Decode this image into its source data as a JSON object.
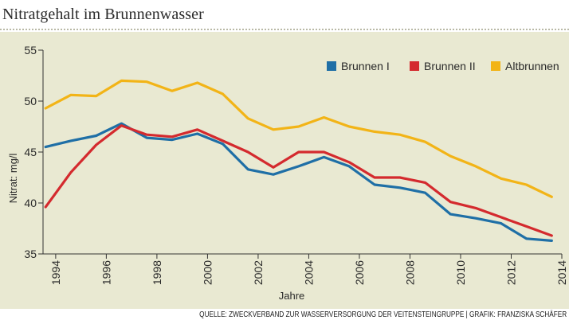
{
  "header": {
    "title": "Nitratgehalt im Brunnenwasser"
  },
  "footer": {
    "source": "QUELLE: ZWECKVERBAND ZUR WASSERVERSORGUNG DER VEITENSTEINGRUPPE | GRAFIK: FRANZISKA SCHÄFER"
  },
  "chart_data": {
    "type": "line",
    "title": "Nitratgehalt im Brunnenwasser",
    "xlabel": "Jahre",
    "ylabel": "Nitrat: mg/l",
    "xlim": [
      1993.5,
      2014
    ],
    "ylim": [
      35,
      55
    ],
    "xticks": [
      1994,
      1996,
      1998,
      2000,
      2002,
      2004,
      2006,
      2008,
      2010,
      2012,
      2014
    ],
    "yticks": [
      35,
      40,
      45,
      50,
      55
    ],
    "legend_position": "top-right",
    "x": [
      1993.6,
      1994.6,
      1995.6,
      1996.6,
      1997.6,
      1998.6,
      1999.6,
      2000.6,
      2001.6,
      2002.6,
      2003.6,
      2004.6,
      2005.6,
      2006.6,
      2007.6,
      2008.6,
      2009.6,
      2010.6,
      2011.6,
      2012.6,
      2013.6
    ],
    "series": [
      {
        "name": "Brunnen I",
        "color": "#1f6fa6",
        "values": [
          45.5,
          46.1,
          46.6,
          47.8,
          46.4,
          46.2,
          46.8,
          45.8,
          43.3,
          42.8,
          43.6,
          44.5,
          43.6,
          41.8,
          41.5,
          41.0,
          38.9,
          38.5,
          38.0,
          36.5,
          36.3
        ]
      },
      {
        "name": "Brunnen II",
        "color": "#d42a2e",
        "values": [
          39.6,
          43.0,
          45.7,
          47.6,
          46.7,
          46.5,
          47.2,
          46.1,
          45.0,
          43.5,
          45.0,
          45.0,
          44.0,
          42.5,
          42.5,
          42.0,
          40.1,
          39.5,
          38.6,
          37.7,
          36.8
        ]
      },
      {
        "name": "Altbrunnen",
        "color": "#f2b417",
        "values": [
          49.3,
          50.6,
          50.5,
          52.0,
          51.9,
          51.0,
          51.8,
          50.7,
          48.3,
          47.2,
          47.5,
          48.4,
          47.5,
          47.0,
          46.7,
          46.0,
          44.6,
          43.6,
          42.4,
          41.8,
          40.6
        ]
      }
    ]
  }
}
